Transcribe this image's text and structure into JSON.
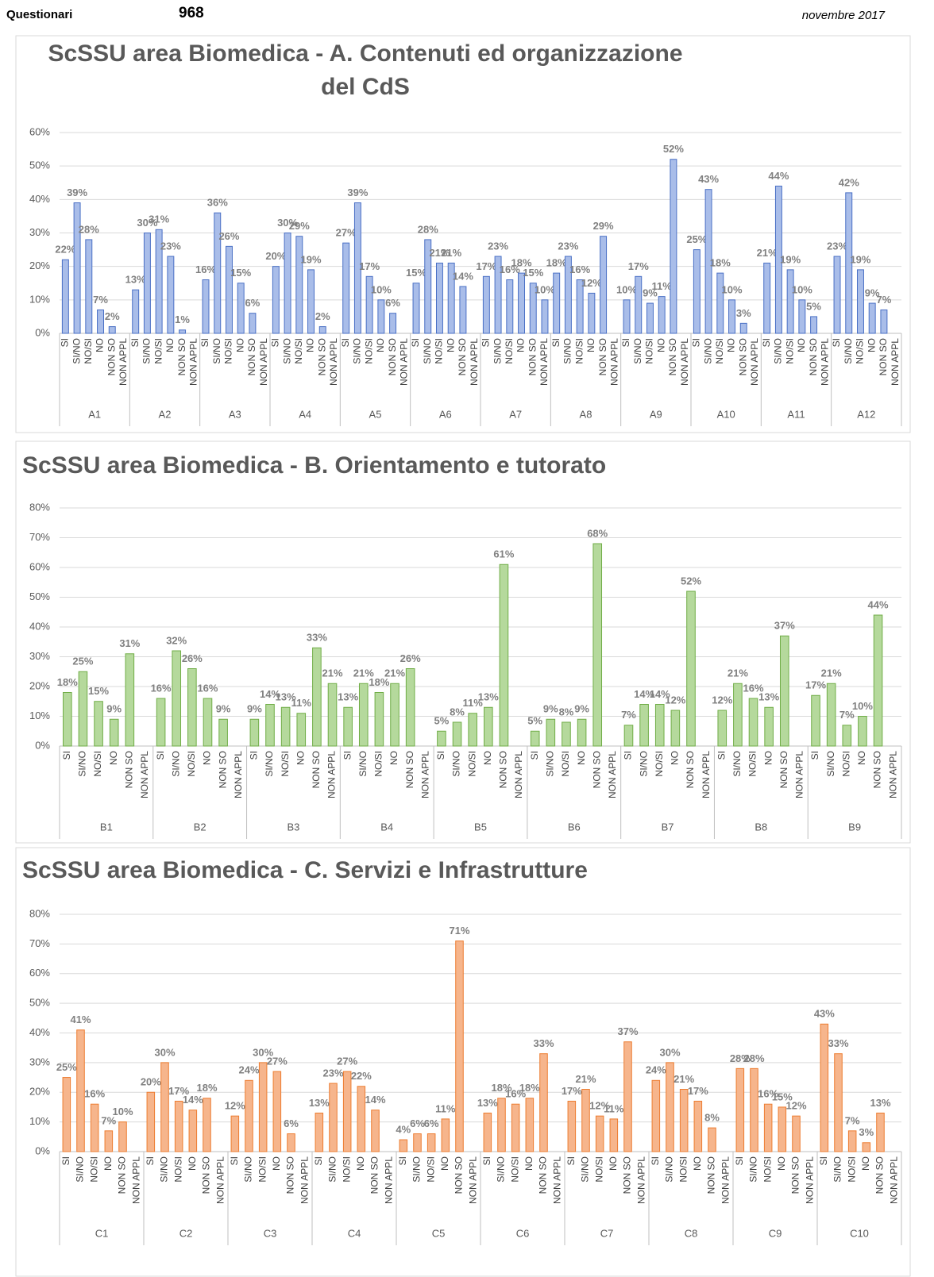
{
  "header": {
    "label": "Questionari",
    "count": "968",
    "date": "novembre 2017"
  },
  "chart_data": [
    {
      "type": "bar",
      "title": "ScSSU area Biomedica - A. Contenuti ed organizzazione\ndel CdS",
      "categories": [
        "A1",
        "A2",
        "A3",
        "A4",
        "A5",
        "A6",
        "A7",
        "A8",
        "A9",
        "A10",
        "A11",
        "A12"
      ],
      "subcategories": [
        "SI",
        "SI/NO",
        "NO/SI",
        "NO",
        "NON SO",
        "NON APPL"
      ],
      "values": [
        [
          22,
          39,
          28,
          7,
          2,
          null
        ],
        [
          13,
          30,
          31,
          23,
          1,
          null
        ],
        [
          16,
          36,
          26,
          15,
          6,
          null
        ],
        [
          20,
          30,
          29,
          19,
          2,
          null
        ],
        [
          27,
          39,
          17,
          10,
          6,
          null
        ],
        [
          15,
          28,
          21,
          21,
          14,
          null
        ],
        [
          17,
          23,
          16,
          18,
          15,
          10
        ],
        [
          18,
          23,
          16,
          12,
          29,
          null
        ],
        [
          10,
          17,
          9,
          11,
          52,
          null
        ],
        [
          25,
          43,
          18,
          10,
          3,
          null
        ],
        [
          21,
          44,
          19,
          10,
          5,
          null
        ],
        [
          23,
          42,
          19,
          9,
          7,
          null
        ]
      ],
      "value_labels": [
        [
          "22%",
          "39%",
          "28%",
          "7%",
          "2%",
          null
        ],
        [
          "13%",
          "30%",
          "31%",
          "23%",
          "1%",
          null
        ],
        [
          "16%",
          "36%",
          "26%",
          "15%",
          "6%",
          null
        ],
        [
          "20%",
          "30%",
          "29%",
          "19%",
          "2%",
          null
        ],
        [
          "27%",
          "39%",
          "17%",
          "10%",
          "6%",
          null
        ],
        [
          "15%",
          "28%",
          "21%",
          "21%",
          "14%",
          null
        ],
        [
          "17%",
          "23%",
          "16%",
          "18%",
          "15%",
          "10%"
        ],
        [
          "18%",
          "23%",
          "16%",
          "12%",
          "29%",
          null
        ],
        [
          "10%",
          "17%",
          "9%",
          "11%",
          "52%",
          null
        ],
        [
          "25%",
          "43%",
          "18%",
          "10%",
          "3%",
          null
        ],
        [
          "21%",
          "44%",
          "19%",
          "10%",
          "5%",
          null
        ],
        [
          "23%",
          "42%",
          "19%",
          "9%",
          "7%",
          null
        ]
      ],
      "color": "#a9bde9",
      "edgecolor": "#4a70c5",
      "ylim": [
        0,
        60
      ],
      "yticks": [
        {
          "value": 0,
          "label": "0%"
        },
        {
          "value": 10,
          "label": "10%"
        },
        {
          "value": 20,
          "label": "20%"
        },
        {
          "value": 30,
          "label": "30%"
        },
        {
          "value": 40,
          "label": "40%"
        },
        {
          "value": 50,
          "label": "50%"
        },
        {
          "value": 60,
          "label": "60%"
        }
      ],
      "grid": true
    },
    {
      "type": "bar",
      "title": "ScSSU area Biomedica  - B. Orientamento e tutorato",
      "categories": [
        "B1",
        "B2",
        "B3",
        "B4",
        "B5",
        "B6",
        "B7",
        "B8",
        "B9"
      ],
      "subcategories": [
        "SI",
        "SI/NO",
        "NO/SI",
        "NO",
        "NON SO",
        "NON APPL"
      ],
      "values": [
        [
          18,
          25,
          15,
          9,
          31,
          null
        ],
        [
          16,
          32,
          26,
          16,
          9,
          null
        ],
        [
          9,
          14,
          13,
          11,
          33,
          21
        ],
        [
          13,
          21,
          18,
          21,
          26,
          null
        ],
        [
          5,
          8,
          11,
          13,
          61,
          null
        ],
        [
          5,
          9,
          8,
          9,
          68,
          null
        ],
        [
          7,
          14,
          14,
          12,
          52,
          null
        ],
        [
          12,
          21,
          16,
          13,
          37,
          null
        ],
        [
          17,
          21,
          7,
          10,
          44,
          null
        ]
      ],
      "value_labels": [
        [
          "18%",
          "25%",
          "15%",
          "9%",
          "31%",
          null
        ],
        [
          "16%",
          "32%",
          "26%",
          "16%",
          "9%",
          null
        ],
        [
          "9%",
          "14%",
          "13%",
          "11%",
          "33%",
          "21%"
        ],
        [
          "13%",
          "21%",
          "18%",
          "21%",
          "26%",
          null
        ],
        [
          "5%",
          "8%",
          "11%",
          "13%",
          "61%",
          null
        ],
        [
          "5%",
          "9%",
          "8%",
          "9%",
          "68%",
          null
        ],
        [
          "7%",
          "14%",
          "14%",
          "12%",
          "52%",
          null
        ],
        [
          "12%",
          "21%",
          "16%",
          "13%",
          "37%",
          null
        ],
        [
          "17%",
          "21%",
          "7%",
          "10%",
          "44%",
          null
        ]
      ],
      "color": "#b5d99c",
      "edgecolor": "#70ad47",
      "ylim": [
        0,
        80
      ],
      "yticks": [
        {
          "value": 0,
          "label": "0%"
        },
        {
          "value": 10,
          "label": "10%"
        },
        {
          "value": 20,
          "label": "20%"
        },
        {
          "value": 30,
          "label": "30%"
        },
        {
          "value": 40,
          "label": "40%"
        },
        {
          "value": 50,
          "label": "50%"
        },
        {
          "value": 60,
          "label": "60%"
        },
        {
          "value": 70,
          "label": "70%"
        },
        {
          "value": 80,
          "label": "80%"
        }
      ],
      "grid": true
    },
    {
      "type": "bar",
      "title": "ScSSU area Biomedica  - C. Servizi e Infrastrutture",
      "categories": [
        "C1",
        "C2",
        "C3",
        "C4",
        "C5",
        "C6",
        "C7",
        "C8",
        "C9",
        "C10"
      ],
      "subcategories": [
        "SI",
        "SI/NO",
        "NO/SI",
        "NO",
        "NON SO",
        "NON APPL"
      ],
      "values": [
        [
          25,
          41,
          16,
          7,
          10,
          null
        ],
        [
          20,
          30,
          17,
          14,
          18,
          null
        ],
        [
          12,
          24,
          30,
          27,
          6,
          null
        ],
        [
          13,
          23,
          27,
          22,
          14,
          null
        ],
        [
          4,
          6,
          6,
          11,
          71,
          null
        ],
        [
          13,
          18,
          16,
          18,
          33,
          null
        ],
        [
          17,
          21,
          12,
          11,
          37,
          null
        ],
        [
          24,
          30,
          21,
          17,
          8,
          null
        ],
        [
          28,
          28,
          16,
          15,
          12,
          null
        ],
        [
          43,
          33,
          7,
          3,
          13,
          null
        ]
      ],
      "value_labels": [
        [
          "25%",
          "41%",
          "16%",
          "7%",
          "10%",
          null
        ],
        [
          "20%",
          "30%",
          "17%",
          "14%",
          "18%",
          null
        ],
        [
          "12%",
          "24%",
          "30%",
          "27%",
          "6%",
          null
        ],
        [
          "13%",
          "23%",
          "27%",
          "22%",
          "14%",
          null
        ],
        [
          "4%",
          "6%",
          "6%",
          "11%",
          "71%",
          null
        ],
        [
          "13%",
          "18%",
          "16%",
          "18%",
          "33%",
          null
        ],
        [
          "17%",
          "21%",
          "12%",
          "11%",
          "37%",
          null
        ],
        [
          "24%",
          "30%",
          "21%",
          "17%",
          "8%",
          null
        ],
        [
          "28%",
          "28%",
          "16%",
          "15%",
          "12%",
          null
        ],
        [
          "43%",
          "33%",
          "7%",
          "3%",
          "13%",
          null
        ]
      ],
      "color": "#f6b58c",
      "edgecolor": "#ed7d31",
      "ylim": [
        0,
        80
      ],
      "yticks": [
        {
          "value": 0,
          "label": "0%"
        },
        {
          "value": 10,
          "label": "10%"
        },
        {
          "value": 20,
          "label": "20%"
        },
        {
          "value": 30,
          "label": "30%"
        },
        {
          "value": 40,
          "label": "40%"
        },
        {
          "value": 50,
          "label": "50%"
        },
        {
          "value": 60,
          "label": "60%"
        },
        {
          "value": 70,
          "label": "70%"
        },
        {
          "value": 80,
          "label": "80%"
        }
      ],
      "grid": true
    }
  ]
}
